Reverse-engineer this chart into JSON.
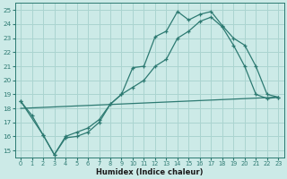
{
  "xlabel": "Humidex (Indice chaleur)",
  "bg_color": "#cceae7",
  "grid_color": "#aad4d0",
  "line_color": "#2d7a72",
  "xlim": [
    -0.5,
    23.5
  ],
  "ylim": [
    14.5,
    25.5
  ],
  "xticks": [
    0,
    1,
    2,
    3,
    4,
    5,
    6,
    7,
    8,
    9,
    10,
    11,
    12,
    13,
    14,
    15,
    16,
    17,
    18,
    19,
    20,
    21,
    22,
    23
  ],
  "yticks": [
    15,
    16,
    17,
    18,
    19,
    20,
    21,
    22,
    23,
    24,
    25
  ],
  "line1_x": [
    0,
    1,
    2,
    3,
    4,
    5,
    6,
    7,
    8,
    9,
    10,
    11,
    12,
    13,
    14,
    15,
    16,
    17,
    18,
    19,
    20,
    21,
    22,
    23
  ],
  "line1_y": [
    18.5,
    17.5,
    16.1,
    14.7,
    16.0,
    16.3,
    16.6,
    17.2,
    18.3,
    19.0,
    20.9,
    21.0,
    23.1,
    23.5,
    24.9,
    24.3,
    24.7,
    24.9,
    23.9,
    23.0,
    22.5,
    21.0,
    19.0,
    18.8
  ],
  "line2_x": [
    0,
    2,
    3,
    4,
    5,
    6,
    7,
    8,
    9,
    10,
    11,
    12,
    13,
    14,
    15,
    16,
    17,
    18,
    19,
    20,
    21,
    22,
    23
  ],
  "line2_y": [
    18.5,
    16.1,
    14.7,
    15.9,
    16.0,
    16.3,
    17.0,
    18.3,
    19.0,
    19.5,
    20.0,
    21.0,
    21.5,
    23.0,
    23.5,
    24.2,
    24.5,
    23.8,
    22.5,
    21.0,
    19.0,
    18.7,
    18.8
  ],
  "line3_x": [
    0,
    23
  ],
  "line3_y": [
    18.0,
    18.8
  ]
}
